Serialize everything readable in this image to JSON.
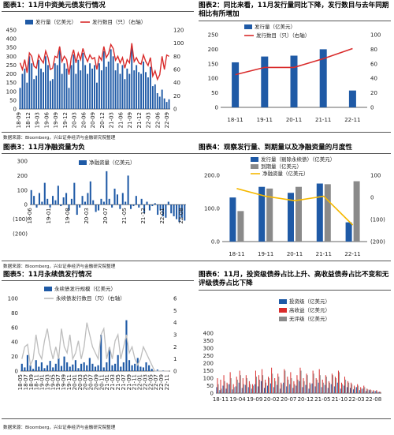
{
  "sources": {
    "s1": "数据来源：Bloomberg，兴业证券经济与金融研究院整理",
    "s2": "数据来源：Bloomberg，兴业证券经济与金融研究院整理",
    "s3": "数据来源：Bloomberg，兴业证券经济与金融研究院整理"
  },
  "colors": {
    "blue": "#1f5aa6",
    "red": "#d92b2b",
    "grey": "#8a8a8a",
    "yellow": "#f5b800",
    "lightgrey": "#bdbdbd"
  },
  "chart_data": [
    {
      "id": "c1",
      "type": "bar",
      "title": "图表1：11月中资美元债发行情况",
      "series": [
        {
          "name": "发行量（亿美元）",
          "type": "bar"
        },
        {
          "name": "发行数目（只）（右轴）",
          "type": "line"
        }
      ],
      "ylim": [
        0,
        450
      ],
      "yticks": [
        0,
        50,
        100,
        150,
        200,
        250,
        300,
        350,
        400,
        450
      ],
      "y2lim": [
        0,
        120
      ],
      "y2ticks": [
        0,
        20,
        40,
        60,
        80,
        100,
        120
      ],
      "xtick_labels": [
        "18-09",
        "18-12",
        "19-03",
        "19-06",
        "19-09",
        "19-12",
        "20-03",
        "20-06",
        "20-09",
        "20-12",
        "21-03",
        "21-06",
        "21-09",
        "21-12",
        "22-03",
        "22-06",
        "22-09"
      ],
      "values": [
        120,
        200,
        230,
        150,
        300,
        260,
        170,
        190,
        280,
        230,
        210,
        300,
        250,
        160,
        170,
        260,
        250,
        350,
        200,
        260,
        230,
        120,
        250,
        310,
        200,
        280,
        220,
        320,
        250,
        200,
        260,
        230,
        250,
        150,
        260,
        220,
        330,
        240,
        270,
        340,
        300,
        220,
        260,
        200,
        250,
        170,
        230,
        200,
        360,
        220,
        250,
        210,
        200,
        270,
        210,
        180,
        240,
        130,
        140,
        90,
        70,
        110,
        60,
        40,
        55
      ],
      "values2": [
        70,
        60,
        75,
        55,
        85,
        80,
        65,
        62,
        82,
        75,
        70,
        88,
        78,
        60,
        62,
        80,
        78,
        95,
        72,
        80,
        75,
        52,
        78,
        90,
        70,
        85,
        75,
        92,
        80,
        72,
        82,
        76,
        78,
        60,
        80,
        74,
        95,
        78,
        84,
        98,
        92,
        74,
        80,
        70,
        78,
        62,
        75,
        70,
        100,
        72,
        78,
        70,
        68,
        82,
        72,
        66,
        78,
        50,
        58,
        45,
        52,
        80,
        60,
        82,
        80
      ]
    },
    {
      "id": "c2",
      "type": "bar",
      "title": "图表2：同比来看，11月发行量同比下降，发行数目与去年同期相比有所增加",
      "categories": [
        "18-11",
        "19-11",
        "20-11",
        "21-11",
        "22-11"
      ],
      "series": [
        {
          "name": "发行量（亿美元）",
          "type": "bar",
          "values": [
            155,
            175,
            178,
            200,
            58
          ]
        },
        {
          "name": "发行数目（只）（右轴）",
          "type": "line",
          "values": [
            45,
            55,
            55,
            67,
            81
          ]
        }
      ],
      "ylim": [
        0,
        250
      ],
      "yticks": [
        0,
        50,
        100,
        150,
        200,
        250
      ],
      "y2lim": [
        0,
        100
      ],
      "y2ticks": [
        0,
        20,
        40,
        60,
        80,
        100
      ]
    },
    {
      "id": "c3",
      "type": "bar",
      "title": "图表3：11月净融资量为负",
      "series": [
        {
          "name": "净融资量（亿美元）"
        }
      ],
      "ylim": [
        -200,
        300
      ],
      "yticks": [
        -200,
        -100,
        0,
        100,
        200,
        300
      ],
      "ytick_labels": [
        "(200)",
        "(100)",
        "0",
        "100",
        "200",
        "300"
      ],
      "xtick_labels": [
        "18-06",
        "19-01",
        "19-08",
        "20-03",
        "20-07",
        "21-05",
        "21-12",
        "22-01",
        "22-08"
      ],
      "values": [
        100,
        60,
        -20,
        80,
        20,
        150,
        40,
        -20,
        60,
        30,
        130,
        -10,
        50,
        80,
        -40,
        40,
        150,
        -70,
        -20,
        60,
        20,
        80,
        160,
        30,
        -50,
        -40,
        40,
        20,
        230,
        40,
        -20,
        110,
        70,
        -30,
        80,
        20,
        200,
        -30,
        -10,
        60,
        -20,
        40,
        -60,
        20,
        -40,
        -10,
        10,
        -70,
        -40,
        -80,
        -90,
        20,
        -60,
        -80,
        -100,
        -120,
        -90,
        -110
      ]
    },
    {
      "id": "c4",
      "type": "bar",
      "title": "图表4：观察发行量、到期量以及净融资量的月度性",
      "categories": [
        "18-11",
        "19-11",
        "20-11",
        "21-11",
        "22-11"
      ],
      "series": [
        {
          "name": "发行量（剔除永续债）（亿美元）",
          "type": "bar",
          "values": [
            133,
            165,
            147,
            175,
            58
          ]
        },
        {
          "name": "到期量（亿美元）",
          "type": "bar",
          "values": [
            92,
            160,
            165,
            173,
            182
          ]
        },
        {
          "name": "净融资量（亿美元）",
          "type": "line",
          "values": [
            40,
            5,
            -15,
            5,
            -125
          ]
        }
      ],
      "ylim": [
        0,
        200
      ],
      "yticks": [
        0,
        100,
        200
      ],
      "ytick_labels": [
        "0.0",
        "100.0",
        "200.0"
      ],
      "y2lim": [
        -200,
        100
      ],
      "y2ticks": [
        -200,
        -100,
        0,
        100
      ],
      "y2tick_labels": [
        "(200)",
        "(100)",
        "0",
        "100"
      ]
    },
    {
      "id": "c5",
      "type": "bar",
      "title": "图表5：11月永续债发行情况",
      "series": [
        {
          "name": "永续债发行规模（亿美元）",
          "type": "bar"
        },
        {
          "name": "永续债发行数目（只）（右轴）",
          "type": "line"
        }
      ],
      "ylim": [
        0,
        100
      ],
      "yticks": [
        0,
        20,
        40,
        60,
        80,
        100
      ],
      "y2lim": [
        0,
        6
      ],
      "y2ticks": [
        0,
        1,
        2,
        3,
        4,
        5,
        6
      ],
      "xtick_labels": [
        "18-05",
        "18-07",
        "18-09",
        "18-11",
        "19-01",
        "19-03",
        "19-05",
        "19-07",
        "19-09",
        "19-11",
        "20-01",
        "20-03",
        "20-05",
        "20-07",
        "20-09",
        "20-11",
        "21-01",
        "21-03",
        "21-05",
        "21-07",
        "21-09",
        "21-11",
        "22-01",
        "22-03",
        "22-05",
        "22-07",
        "22-09",
        "22-11"
      ],
      "values": [
        10,
        5,
        22,
        8,
        3,
        15,
        6,
        12,
        4,
        8,
        14,
        5,
        10,
        18,
        7,
        20,
        12,
        6,
        9,
        15,
        4,
        10,
        12,
        8,
        18,
        10,
        6,
        8,
        50,
        5,
        12,
        32,
        8,
        10,
        22,
        6,
        12,
        70,
        15,
        8,
        10,
        18,
        6,
        5,
        12,
        8,
        3,
        0,
        2,
        0,
        1,
        0,
        0
      ],
      "values2": [
        1,
        2,
        2.2,
        0.5,
        1,
        3,
        1.5,
        1,
        2.5,
        3.5,
        2,
        1,
        2,
        1,
        3.5,
        2,
        1.5,
        3,
        1,
        1.5,
        2.5,
        1,
        2,
        4,
        3,
        2,
        1.5,
        1,
        3,
        3.5,
        1,
        2,
        1,
        2.5,
        3,
        1,
        2,
        3,
        1.5,
        2,
        1,
        0.5,
        1,
        2,
        1.5,
        1,
        0.5,
        0,
        0,
        0,
        0,
        0,
        0
      ]
    },
    {
      "id": "c6",
      "type": "bar",
      "title": "图表6：11月，投资级债券占比上升、高收益债券占比不变和无评级债券占比下降",
      "series": [
        {
          "name": "投资级（亿美元）"
        },
        {
          "name": "高收益（亿美元）"
        },
        {
          "name": "无评级（亿美元）"
        }
      ],
      "ylim": [
        0,
        400
      ],
      "yticks": [
        0,
        50,
        100,
        150,
        200,
        250,
        300,
        350,
        400
      ],
      "xtick_labels": [
        "18-11",
        "19-04",
        "19-09",
        "20-02",
        "20-07",
        "20-12",
        "21-05",
        "21-10",
        "22-03",
        "22-08"
      ],
      "values": [
        [
          40,
          100,
          60
        ],
        [
          20,
          90,
          30
        ],
        [
          50,
          120,
          80
        ],
        [
          30,
          70,
          60
        ],
        [
          60,
          140,
          100
        ],
        [
          25,
          60,
          40
        ],
        [
          45,
          110,
          90
        ],
        [
          70,
          150,
          120
        ],
        [
          35,
          100,
          60
        ],
        [
          55,
          120,
          100
        ],
        [
          40,
          80,
          60
        ],
        [
          30,
          60,
          50
        ],
        [
          60,
          150,
          110
        ],
        [
          45,
          120,
          90
        ],
        [
          80,
          160,
          120
        ],
        [
          35,
          90,
          70
        ],
        [
          50,
          110,
          100
        ],
        [
          65,
          170,
          130
        ],
        [
          40,
          100,
          80
        ],
        [
          55,
          130,
          110
        ],
        [
          30,
          70,
          60
        ],
        [
          70,
          160,
          150
        ],
        [
          45,
          110,
          90
        ],
        [
          60,
          140,
          100
        ],
        [
          35,
          80,
          60
        ],
        [
          50,
          120,
          90
        ],
        [
          80,
          170,
          150
        ],
        [
          40,
          100,
          80
        ],
        [
          55,
          130,
          120
        ],
        [
          30,
          70,
          60
        ],
        [
          65,
          150,
          130
        ],
        [
          45,
          100,
          90
        ],
        [
          70,
          160,
          120
        ],
        [
          40,
          90,
          70
        ],
        [
          55,
          120,
          110
        ],
        [
          35,
          80,
          70
        ],
        [
          60,
          130,
          120
        ],
        [
          45,
          110,
          100
        ],
        [
          70,
          150,
          140
        ],
        [
          30,
          70,
          60
        ],
        [
          50,
          110,
          90
        ],
        [
          40,
          80,
          70
        ],
        [
          35,
          70,
          60
        ],
        [
          25,
          50,
          40
        ],
        [
          40,
          60,
          50
        ],
        [
          20,
          40,
          30
        ],
        [
          30,
          50,
          40
        ],
        [
          15,
          30,
          25
        ],
        [
          20,
          25,
          20
        ],
        [
          10,
          20,
          15
        ],
        [
          15,
          20,
          10
        ],
        [
          8,
          10,
          8
        ]
      ]
    }
  ]
}
